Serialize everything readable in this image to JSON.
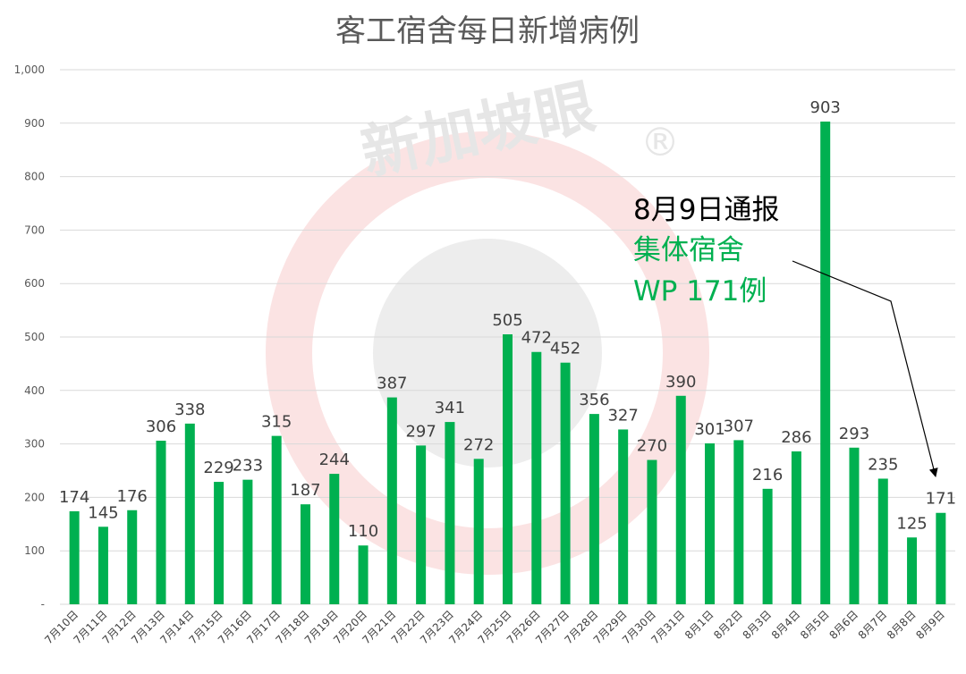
{
  "chart_data": {
    "type": "bar",
    "title": "客工宿舍每日新增病例",
    "xlabel": "",
    "ylabel": "",
    "ylim": [
      0,
      1000
    ],
    "yticks": [
      "-",
      "100",
      "200",
      "300",
      "400",
      "500",
      "600",
      "700",
      "800",
      "900",
      "1,000"
    ],
    "grid": true,
    "bar_color": "#00B050",
    "categories": [
      "7月10日",
      "7月11日",
      "7月12日",
      "7月13日",
      "7月14日",
      "7月15日",
      "7月16日",
      "7月17日",
      "7月18日",
      "7月19日",
      "7月20日",
      "7月21日",
      "7月22日",
      "7月23日",
      "7月24日",
      "7月25日",
      "7月26日",
      "7月27日",
      "7月28日",
      "7月29日",
      "7月30日",
      "7月31日",
      "8月1日",
      "8月2日",
      "8月3日",
      "8月4日",
      "8月5日",
      "8月6日",
      "8月7日",
      "8月8日",
      "8月9日"
    ],
    "values": [
      174,
      145,
      176,
      306,
      338,
      229,
      233,
      315,
      187,
      244,
      110,
      387,
      297,
      341,
      272,
      505,
      472,
      452,
      356,
      327,
      270,
      390,
      301,
      307,
      216,
      286,
      903,
      293,
      235,
      125,
      171
    ],
    "annotation": {
      "line1": "8月9日通报",
      "line2": "集体宿舍",
      "line3": "WP 171例",
      "line1_color": "#000000",
      "line2_color": "#00B050"
    }
  },
  "watermark": {
    "text": "新加坡眼",
    "mark": "®"
  }
}
